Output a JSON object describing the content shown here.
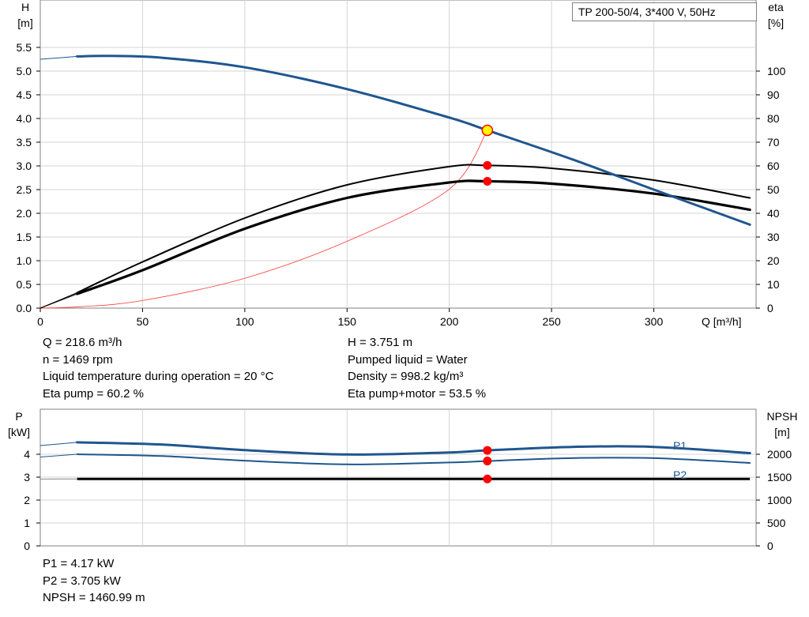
{
  "title_box": "TP 200-50/4, 3*400 V, 50Hz",
  "colors": {
    "head": "#1f568f",
    "eta": "#000000",
    "system": "#ff3b3b",
    "grid": "#d4d4d4",
    "marker": "#ff0000",
    "op_point": "#ffff00"
  },
  "top_labels": {
    "h_axis": "H",
    "h_unit": "[m]",
    "eta_axis": "eta",
    "eta_unit": "[%]",
    "x_axis": "Q [m³/h]"
  },
  "bottom_labels": {
    "p_axis": "P",
    "p_unit": "[kW]",
    "npsh_axis": "NPSH",
    "npsh_unit": "[m]",
    "p1_label": "P1",
    "p2_label": "P2"
  },
  "info_top_left": [
    "Q = 218.6 m³/h",
    "n = 1469 rpm",
    "Liquid temperature during operation = 20 °C",
    "Eta pump = 60.2 %"
  ],
  "info_top_right": [
    "H = 3.751 m",
    "Pumped liquid = Water",
    "Density = 998.2 kg/m³",
    "Eta pump+motor = 53.5 %"
  ],
  "info_bottom": [
    "P1 = 4.17 kW",
    "P2 = 3.705 kW",
    "NPSH = 1460.99 m"
  ],
  "chart_data": [
    {
      "type": "line",
      "x_range": [
        0,
        350
      ],
      "x_ticks": [
        0,
        50,
        100,
        150,
        200,
        250,
        300
      ],
      "y_left_range": [
        0,
        5.5
      ],
      "y_left_ticks": [
        "0.0",
        "0.5",
        "1.0",
        "1.5",
        "2.0",
        "2.5",
        "3.0",
        "3.5",
        "4.0",
        "4.5",
        "5.0",
        "5.5"
      ],
      "y_right_range": [
        0,
        110
      ],
      "y_right_ticks": [
        0,
        10,
        20,
        30,
        40,
        50,
        60,
        70,
        80,
        90,
        100
      ],
      "grid": true,
      "series": [
        {
          "name": "H",
          "axis": "left",
          "x": [
            0,
            18,
            35,
            60,
            100,
            150,
            200,
            218.6,
            260,
            300,
            347
          ],
          "y": [
            5.25,
            5.31,
            5.32,
            5.28,
            5.08,
            4.62,
            4.02,
            3.751,
            3.14,
            2.5,
            1.76
          ]
        },
        {
          "name": "Eta pump",
          "axis": "right",
          "x": [
            0,
            18,
            50,
            100,
            150,
            200,
            218.6,
            250,
            300,
            347
          ],
          "y": [
            0,
            6.5,
            19.5,
            38,
            52,
            59.7,
            60.2,
            59,
            54,
            46.5
          ]
        },
        {
          "name": "Eta pump+motor",
          "axis": "right",
          "x": [
            0,
            18,
            50,
            100,
            150,
            200,
            218.6,
            250,
            300,
            347
          ],
          "y": [
            0,
            6,
            16,
            33.5,
            46.5,
            53,
            53.5,
            52.5,
            48.3,
            41.5
          ]
        },
        {
          "name": "System curve",
          "axis": "left",
          "x": [
            0,
            20,
            50,
            100,
            150,
            200,
            218.6
          ],
          "y": [
            0,
            0.03,
            0.16,
            0.63,
            1.41,
            2.51,
            3.751
          ]
        }
      ],
      "operating_points": [
        {
          "x": 218.6,
          "y": 3.751,
          "axis": "left"
        },
        {
          "x": 218.6,
          "y": 60.2,
          "axis": "right"
        },
        {
          "x": 218.6,
          "y": 53.5,
          "axis": "right"
        }
      ]
    },
    {
      "type": "line",
      "x_range": [
        0,
        350
      ],
      "y_left_range": [
        0,
        6
      ],
      "y_left_ticks": [
        0,
        1,
        2,
        3,
        4
      ],
      "y_right_range": [
        0,
        3000
      ],
      "y_right_ticks": [
        0,
        500,
        1000,
        1500,
        2000
      ],
      "grid": true,
      "series": [
        {
          "name": "P1",
          "axis": "left",
          "x": [
            0,
            18,
            60,
            100,
            150,
            200,
            218.6,
            260,
            300,
            347
          ],
          "y": [
            4.38,
            4.52,
            4.42,
            4.18,
            3.99,
            4.08,
            4.17,
            4.32,
            4.32,
            4.05
          ]
        },
        {
          "name": "P2",
          "axis": "left",
          "x": [
            0,
            18,
            60,
            100,
            150,
            200,
            218.6,
            260,
            300,
            347
          ],
          "y": [
            3.88,
            4.0,
            3.92,
            3.72,
            3.56,
            3.64,
            3.705,
            3.83,
            3.83,
            3.62
          ]
        },
        {
          "name": "NPSH",
          "axis": "right",
          "x": [
            0,
            18,
            100,
            200,
            218.6,
            300,
            347
          ],
          "y": [
            1460,
            1460.5,
            1460.8,
            1460.9,
            1460.99,
            1461,
            1461
          ]
        }
      ],
      "operating_points": [
        {
          "x": 218.6,
          "y": 4.17,
          "axis": "left"
        },
        {
          "x": 218.6,
          "y": 3.705,
          "axis": "left"
        },
        {
          "x": 218.6,
          "y": 1460.99,
          "axis": "right"
        }
      ]
    }
  ]
}
